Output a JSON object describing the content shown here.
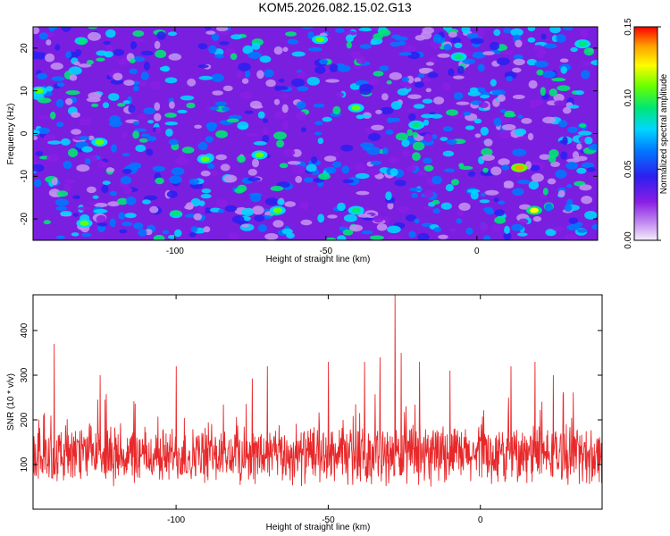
{
  "title": "KOM5.2026.082.15.02.G13",
  "chart_data": [
    {
      "type": "heatmap",
      "title": "KOM5.2026.082.15.02.G13",
      "xlabel": "Height of straight line (km)",
      "ylabel": "Frequency (Hz)",
      "xlim": [
        -147,
        40
      ],
      "ylim": [
        -25,
        25
      ],
      "xticks": [
        -100,
        -50,
        0
      ],
      "yticks": [
        20,
        10,
        0,
        -10,
        -20
      ],
      "colorbar": {
        "label": "Normalized spectral amplitude",
        "range": [
          0.0,
          0.15
        ],
        "ticks": [
          "0.00",
          "0.05",
          "0.10",
          "0.15"
        ],
        "colors": [
          "#f5eefc",
          "#c28ef0",
          "#8a1ee6",
          "#2c1ff0",
          "#0078ff",
          "#00d6ff",
          "#00e676",
          "#66ff00",
          "#fffc00",
          "#ffa000",
          "#ff0000"
        ]
      },
      "peaks": [
        {
          "x": 14,
          "y": -8,
          "value": 0.14
        },
        {
          "x": 19,
          "y": -18,
          "value": 0.12
        },
        {
          "x": -66,
          "y": -18,
          "value": 0.11
        },
        {
          "x": -72,
          "y": -5,
          "value": 0.11
        },
        {
          "x": -40,
          "y": 6,
          "value": 0.1
        },
        {
          "x": -145,
          "y": 10,
          "value": 0.1
        },
        {
          "x": -125,
          "y": -2,
          "value": 0.1
        },
        {
          "x": -90,
          "y": -6,
          "value": 0.1
        },
        {
          "x": -130,
          "y": -21,
          "value": 0.1
        },
        {
          "x": -52,
          "y": 22,
          "value": 0.1
        },
        {
          "x": -6,
          "y": 18,
          "value": 0.09
        },
        {
          "x": -20,
          "y": 2,
          "value": 0.09
        },
        {
          "x": -40,
          "y": -18,
          "value": 0.09
        },
        {
          "x": 35,
          "y": 21,
          "value": 0.09
        }
      ]
    },
    {
      "type": "line",
      "xlabel": "Height of straight line (km)",
      "ylabel": "SNR (10 * v/v)",
      "xlim": [
        -147,
        40
      ],
      "ylim": [
        0,
        480
      ],
      "xticks": [
        -100,
        -50,
        0
      ],
      "yticks": [
        100,
        200,
        300,
        400
      ],
      "color": "#e8282a",
      "baseline_mean": 120,
      "noise_amplitude": 60,
      "spikes": [
        {
          "x": -140,
          "y": 370
        },
        {
          "x": -125,
          "y": 300
        },
        {
          "x": -100,
          "y": 320
        },
        {
          "x": -70,
          "y": 320
        },
        {
          "x": -50,
          "y": 330
        },
        {
          "x": -38,
          "y": 330
        },
        {
          "x": -33,
          "y": 340
        },
        {
          "x": -28,
          "y": 480
        },
        {
          "x": -26,
          "y": 350
        },
        {
          "x": -20,
          "y": 330
        },
        {
          "x": -10,
          "y": 310
        },
        {
          "x": 10,
          "y": 280
        },
        {
          "x": 10,
          "y": 320
        },
        {
          "x": 18,
          "y": 330
        },
        {
          "x": 24,
          "y": 300
        }
      ]
    }
  ]
}
